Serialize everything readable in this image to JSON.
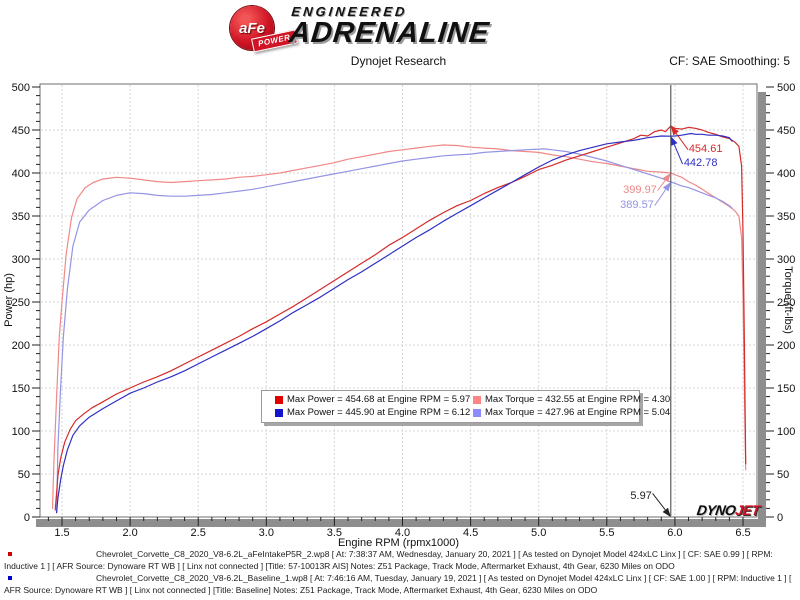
{
  "header": {
    "logo": {
      "badge": "aFe",
      "ribbon": "POWER",
      "line1": "ENGINEERED",
      "line2": "ADRENALINE"
    },
    "title": "Dynojet Research",
    "smoothing": "CF: SAE Smoothing: 5"
  },
  "watermark": {
    "part1": "DYNO",
    "part2": "JET"
  },
  "chart_data": {
    "type": "line",
    "title": "Dynojet Research",
    "xlabel": "Engine RPM (rpmx1000)",
    "ylabel_left": "Power (hp)",
    "ylabel_right": "Torque (ft-lbs)",
    "xlim": [
      1.34,
      6.6
    ],
    "ylim": [
      0,
      500
    ],
    "grid": true,
    "x_axis": {
      "tick_values": [
        1.5,
        2.0,
        2.5,
        3.0,
        3.5,
        4.0,
        4.5,
        5.0,
        5.5,
        6.0,
        6.5
      ],
      "tick_labels": [
        "1.5",
        "2.0",
        "2.5",
        "3.0",
        "3.5",
        "4.0",
        "4.5",
        "5.0",
        "5.5",
        "6.0",
        "6.5"
      ]
    },
    "y_axis": {
      "tick_values": [
        0,
        50,
        100,
        150,
        200,
        250,
        300,
        350,
        400,
        450,
        500
      ],
      "tick_labels": [
        "0",
        "50",
        "100",
        "150",
        "200",
        "250",
        "300",
        "350",
        "400",
        "450",
        "500"
      ]
    },
    "cursor_rpm": 5.97,
    "series": [
      {
        "name": "aFe intake torque",
        "color": "#f08888",
        "points": [
          [
            1.43,
            10
          ],
          [
            1.44,
            60
          ],
          [
            1.46,
            140
          ],
          [
            1.48,
            210
          ],
          [
            1.5,
            250
          ],
          [
            1.53,
            305
          ],
          [
            1.57,
            348
          ],
          [
            1.61,
            370
          ],
          [
            1.67,
            383
          ],
          [
            1.73,
            389
          ],
          [
            1.8,
            393
          ],
          [
            1.9,
            395
          ],
          [
            2.0,
            394
          ],
          [
            2.1,
            392
          ],
          [
            2.2,
            390
          ],
          [
            2.3,
            389
          ],
          [
            2.4,
            390
          ],
          [
            2.5,
            391
          ],
          [
            2.6,
            392
          ],
          [
            2.7,
            393
          ],
          [
            2.8,
            395
          ],
          [
            2.9,
            396
          ],
          [
            3.0,
            398
          ],
          [
            3.1,
            400
          ],
          [
            3.2,
            403
          ],
          [
            3.3,
            406
          ],
          [
            3.4,
            409
          ],
          [
            3.5,
            412
          ],
          [
            3.6,
            416
          ],
          [
            3.7,
            419
          ],
          [
            3.8,
            422
          ],
          [
            3.9,
            425
          ],
          [
            4.0,
            427
          ],
          [
            4.1,
            429
          ],
          [
            4.2,
            431
          ],
          [
            4.3,
            432.6
          ],
          [
            4.4,
            432
          ],
          [
            4.5,
            430
          ],
          [
            4.6,
            429
          ],
          [
            4.7,
            428
          ],
          [
            4.8,
            426
          ],
          [
            4.9,
            425
          ],
          [
            5.0,
            424
          ],
          [
            5.1,
            421
          ],
          [
            5.2,
            419
          ],
          [
            5.3,
            416
          ],
          [
            5.4,
            413
          ],
          [
            5.5,
            411
          ],
          [
            5.6,
            408
          ],
          [
            5.7,
            405
          ],
          [
            5.8,
            402
          ],
          [
            5.9,
            401
          ],
          [
            5.97,
            400
          ],
          [
            6.0,
            398
          ],
          [
            6.05,
            395
          ],
          [
            6.1,
            390
          ],
          [
            6.15,
            386
          ],
          [
            6.2,
            381
          ],
          [
            6.25,
            376
          ],
          [
            6.3,
            371
          ],
          [
            6.35,
            366
          ],
          [
            6.4,
            361
          ],
          [
            6.44,
            356
          ],
          [
            6.47,
            350
          ],
          [
            6.49,
            325
          ],
          [
            6.5,
            255
          ],
          [
            6.51,
            150
          ],
          [
            6.52,
            55
          ]
        ]
      },
      {
        "name": "baseline torque",
        "color": "#9494e4",
        "points": [
          [
            1.46,
            5
          ],
          [
            1.47,
            80
          ],
          [
            1.49,
            150
          ],
          [
            1.51,
            210
          ],
          [
            1.54,
            265
          ],
          [
            1.58,
            315
          ],
          [
            1.63,
            343
          ],
          [
            1.7,
            357
          ],
          [
            1.8,
            368
          ],
          [
            1.9,
            374
          ],
          [
            2.0,
            377
          ],
          [
            2.1,
            376
          ],
          [
            2.2,
            374
          ],
          [
            2.3,
            373
          ],
          [
            2.4,
            373
          ],
          [
            2.5,
            374
          ],
          [
            2.6,
            375
          ],
          [
            2.7,
            377
          ],
          [
            2.8,
            379
          ],
          [
            2.9,
            381
          ],
          [
            3.0,
            384
          ],
          [
            3.1,
            387
          ],
          [
            3.2,
            390
          ],
          [
            3.3,
            393
          ],
          [
            3.4,
            396
          ],
          [
            3.5,
            399
          ],
          [
            3.6,
            402
          ],
          [
            3.7,
            405
          ],
          [
            3.8,
            408
          ],
          [
            3.9,
            411
          ],
          [
            4.0,
            414
          ],
          [
            4.1,
            416
          ],
          [
            4.2,
            418
          ],
          [
            4.3,
            420
          ],
          [
            4.4,
            421
          ],
          [
            4.5,
            422
          ],
          [
            4.6,
            424
          ],
          [
            4.7,
            425
          ],
          [
            4.8,
            426
          ],
          [
            4.9,
            427
          ],
          [
            5.0,
            427.8
          ],
          [
            5.04,
            428
          ],
          [
            5.1,
            427
          ],
          [
            5.2,
            425
          ],
          [
            5.3,
            422
          ],
          [
            5.4,
            418
          ],
          [
            5.5,
            414
          ],
          [
            5.6,
            409
          ],
          [
            5.7,
            404
          ],
          [
            5.8,
            399
          ],
          [
            5.9,
            394
          ],
          [
            5.97,
            389.6
          ],
          [
            6.0,
            388
          ],
          [
            6.05,
            385
          ],
          [
            6.1,
            383
          ],
          [
            6.15,
            380
          ],
          [
            6.2,
            377
          ],
          [
            6.25,
            374
          ],
          [
            6.3,
            371
          ],
          [
            6.35,
            367
          ],
          [
            6.4,
            362
          ],
          [
            6.42,
            359
          ]
        ]
      },
      {
        "name": "aFe intake power",
        "color": "#d42a2a",
        "points": [
          [
            1.45,
            8
          ],
          [
            1.46,
            28
          ],
          [
            1.47,
            48
          ],
          [
            1.49,
            68
          ],
          [
            1.52,
            87
          ],
          [
            1.56,
            102
          ],
          [
            1.6,
            112
          ],
          [
            1.66,
            120
          ],
          [
            1.72,
            127
          ],
          [
            1.8,
            134
          ],
          [
            1.9,
            143
          ],
          [
            2.0,
            150
          ],
          [
            2.1,
            157
          ],
          [
            2.2,
            163
          ],
          [
            2.3,
            170
          ],
          [
            2.4,
            178
          ],
          [
            2.5,
            186
          ],
          [
            2.6,
            194
          ],
          [
            2.7,
            202
          ],
          [
            2.8,
            210
          ],
          [
            2.9,
            219
          ],
          [
            3.0,
            227
          ],
          [
            3.1,
            236
          ],
          [
            3.2,
            245
          ],
          [
            3.3,
            255
          ],
          [
            3.4,
            265
          ],
          [
            3.5,
            275
          ],
          [
            3.6,
            285
          ],
          [
            3.7,
            295
          ],
          [
            3.8,
            305
          ],
          [
            3.9,
            316
          ],
          [
            4.0,
            325
          ],
          [
            4.1,
            335
          ],
          [
            4.2,
            345
          ],
          [
            4.3,
            354
          ],
          [
            4.4,
            362
          ],
          [
            4.5,
            368
          ],
          [
            4.6,
            376
          ],
          [
            4.7,
            383
          ],
          [
            4.8,
            389
          ],
          [
            4.9,
            396
          ],
          [
            5.0,
            404
          ],
          [
            5.1,
            409
          ],
          [
            5.2,
            415
          ],
          [
            5.3,
            420
          ],
          [
            5.4,
            425
          ],
          [
            5.5,
            430
          ],
          [
            5.6,
            435
          ],
          [
            5.7,
            440
          ],
          [
            5.75,
            444
          ],
          [
            5.8,
            443
          ],
          [
            5.85,
            448
          ],
          [
            5.9,
            450
          ],
          [
            5.93,
            448
          ],
          [
            5.97,
            454.7
          ],
          [
            6.0,
            452
          ],
          [
            6.05,
            451
          ],
          [
            6.1,
            453
          ],
          [
            6.15,
            452
          ],
          [
            6.2,
            450
          ],
          [
            6.25,
            447
          ],
          [
            6.3,
            445
          ],
          [
            6.35,
            442
          ],
          [
            6.4,
            440
          ],
          [
            6.44,
            436
          ],
          [
            6.47,
            431
          ],
          [
            6.49,
            408
          ],
          [
            6.5,
            330
          ],
          [
            6.51,
            200
          ],
          [
            6.52,
            62
          ]
        ]
      },
      {
        "name": "baseline power",
        "color": "#2f2fc4",
        "points": [
          [
            1.46,
            5
          ],
          [
            1.47,
            22
          ],
          [
            1.49,
            43
          ],
          [
            1.51,
            60
          ],
          [
            1.54,
            78
          ],
          [
            1.58,
            95
          ],
          [
            1.63,
            106
          ],
          [
            1.7,
            116
          ],
          [
            1.8,
            126
          ],
          [
            1.9,
            135
          ],
          [
            2.0,
            144
          ],
          [
            2.1,
            150
          ],
          [
            2.2,
            157
          ],
          [
            2.3,
            163
          ],
          [
            2.4,
            170
          ],
          [
            2.5,
            178
          ],
          [
            2.6,
            186
          ],
          [
            2.7,
            194
          ],
          [
            2.8,
            202
          ],
          [
            2.9,
            210
          ],
          [
            3.0,
            219
          ],
          [
            3.1,
            228
          ],
          [
            3.2,
            238
          ],
          [
            3.3,
            247
          ],
          [
            3.4,
            256
          ],
          [
            3.5,
            266
          ],
          [
            3.6,
            276
          ],
          [
            3.7,
            285
          ],
          [
            3.8,
            295
          ],
          [
            3.9,
            305
          ],
          [
            4.0,
            315
          ],
          [
            4.1,
            325
          ],
          [
            4.2,
            334
          ],
          [
            4.3,
            344
          ],
          [
            4.4,
            353
          ],
          [
            4.5,
            362
          ],
          [
            4.6,
            371
          ],
          [
            4.7,
            380
          ],
          [
            4.8,
            389
          ],
          [
            4.9,
            398
          ],
          [
            5.0,
            407
          ],
          [
            5.1,
            415
          ],
          [
            5.2,
            421
          ],
          [
            5.3,
            426
          ],
          [
            5.4,
            430
          ],
          [
            5.5,
            434
          ],
          [
            5.6,
            436
          ],
          [
            5.7,
            438
          ],
          [
            5.8,
            441
          ],
          [
            5.9,
            443
          ],
          [
            5.97,
            442.8
          ],
          [
            6.0,
            443
          ],
          [
            6.05,
            444
          ],
          [
            6.12,
            445.9
          ],
          [
            6.15,
            445
          ],
          [
            6.2,
            445
          ],
          [
            6.25,
            444
          ],
          [
            6.3,
            444
          ],
          [
            6.35,
            443
          ],
          [
            6.4,
            441
          ],
          [
            6.42,
            437
          ]
        ]
      }
    ],
    "annotations": [
      {
        "label": "454.61",
        "rpm": 5.97,
        "value": 454.61,
        "color": "#d42a2a",
        "text_dx": 16,
        "text_dy": 22,
        "align": "start"
      },
      {
        "label": "442.78",
        "rpm": 5.97,
        "value": 442.78,
        "color": "#2f2fc4",
        "text_dx": 11,
        "text_dy": 26,
        "align": "start"
      },
      {
        "label": "399.97",
        "rpm": 5.97,
        "value": 399.97,
        "color": "#f08888",
        "text_dx": -12,
        "text_dy": 16,
        "align": "end"
      },
      {
        "label": "389.57",
        "rpm": 5.97,
        "value": 389.57,
        "color": "#9494e4",
        "text_dx": -15,
        "text_dy": 22,
        "align": "end"
      },
      {
        "label": "5.97",
        "rpm": 5.97,
        "value": 0,
        "color": "#222222",
        "text_dx": -17,
        "text_dy": -22,
        "align": "end"
      }
    ],
    "legend": {
      "position": "inside-bottom-center",
      "entries": [
        {
          "label": "Max Power = 454.68 at Engine RPM = 5.97",
          "color": "#e00000"
        },
        {
          "label": "Max Torque = 432.55 at Engine RPM = 4.30",
          "color": "#ff8484"
        },
        {
          "label": "Max Power = 445.90 at Engine RPM = 6.12",
          "color": "#1414cc"
        },
        {
          "label": "Max Torque = 427.96 at Engine RPM = 5.04",
          "color": "#8c8cff"
        }
      ]
    }
  },
  "footer": {
    "runs": [
      {
        "bullet_color": "#cc0000",
        "text": "Chevrolet_Corvette_C8_2020_V8-6.2L_aFeIntakeP5R_2.wp8 [ At: 7:38:37 AM, Wednesday, January 20, 2021 ] [ As tested on Dynojet Model 424xLC Linx ] [ CF: SAE 0.99 ] [ RPM: Inductive 1 ] [ AFR Source: Dynoware RT WB ] [ Linx not connected ] [Title: 57-10013R AIS]  Notes: Z51 Package, Track Mode, Aftermarket Exhaust, 4th Gear, 6230 Miles on ODO"
      },
      {
        "bullet_color": "#0000cc",
        "text": "Chevrolet_Corvette_C8_2020_V8-6.2L_Baseline_1.wp8 [ At: 7:46:16 AM, Tuesday, January 19, 2021 ] [ As tested on Dynojet Model 424xLC Linx ] [ CF: SAE 1.00 ] [ RPM: Inductive 1 ] [ AFR Source: Dynoware RT WB ] [ Linx not connected ] [Title: Baseline]  Notes: Z51 Package, Track Mode, Aftermarket Exhaust, 4th Gear, 6230 Miles on ODO"
      }
    ]
  }
}
